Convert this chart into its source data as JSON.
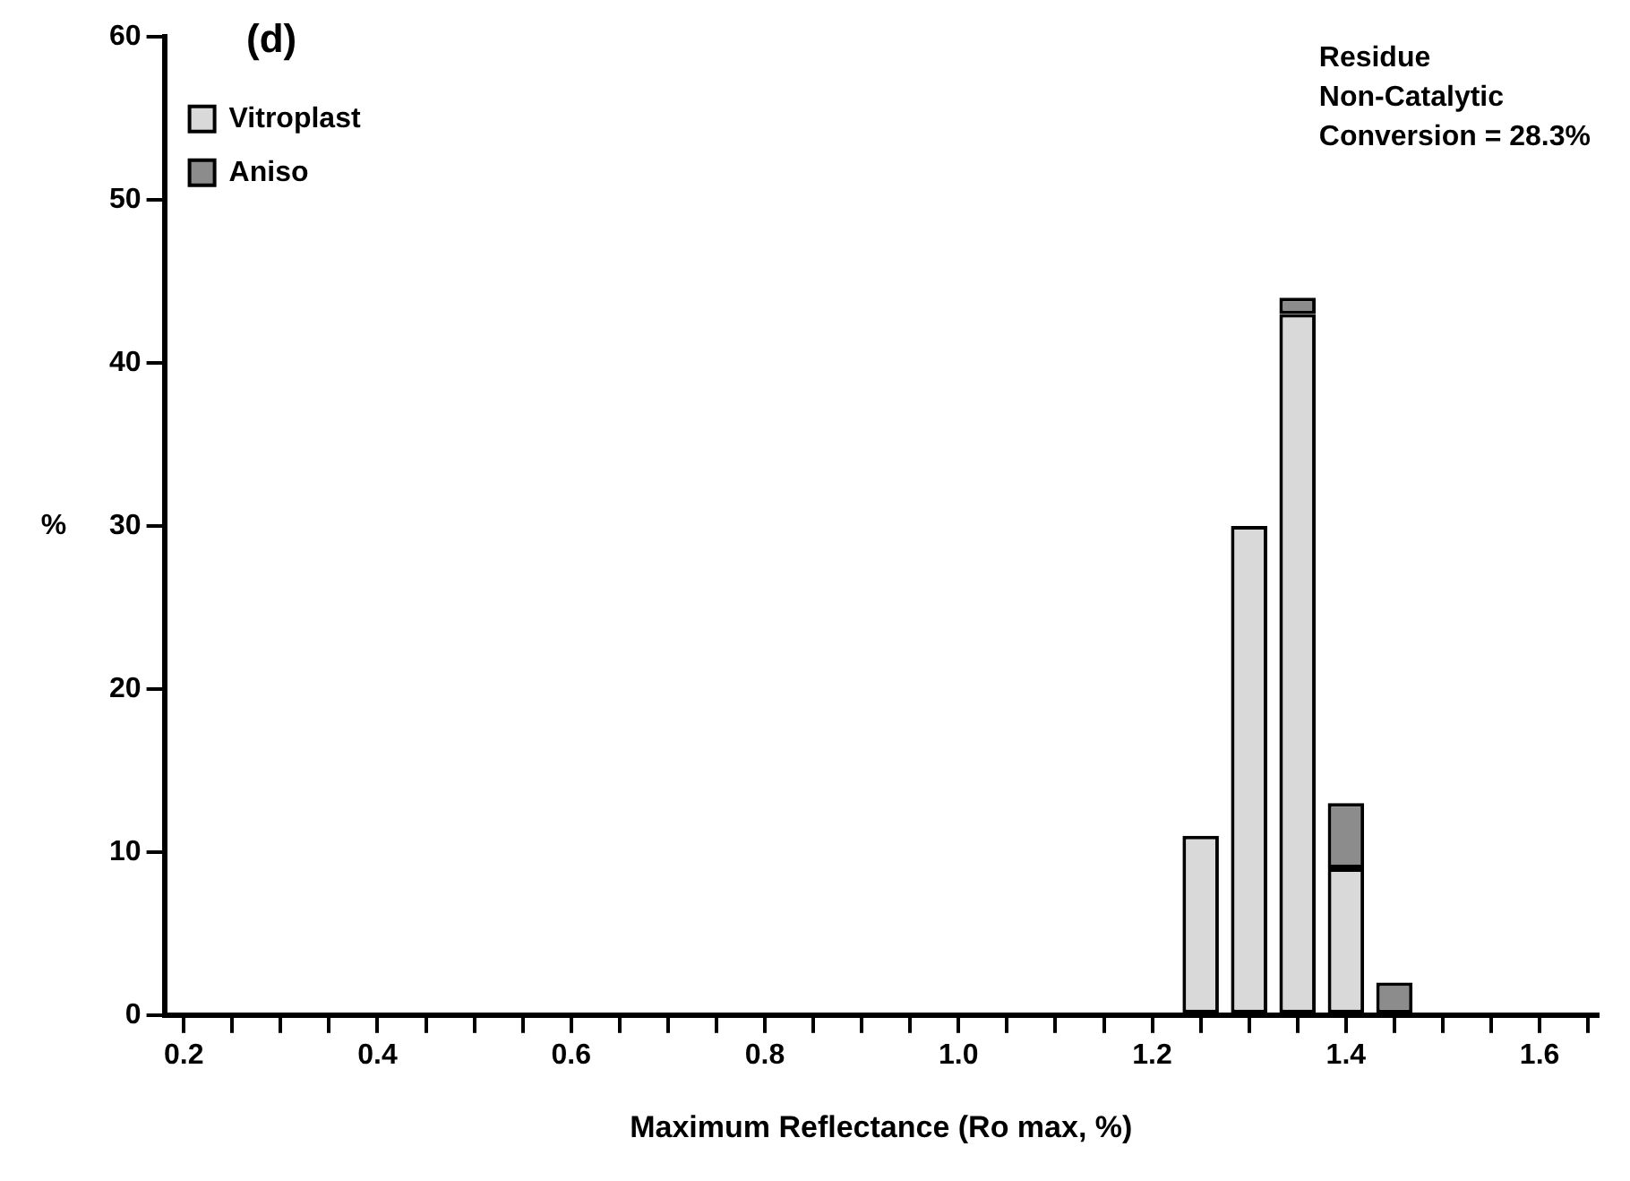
{
  "chart_data": {
    "type": "bar",
    "stacked": true,
    "xlabel": "Maximum Reflectance (Ro max, %)",
    "ylabel": "%",
    "x": [
      1.25,
      1.3,
      1.35,
      1.4,
      1.45
    ],
    "series": [
      {
        "name": "Vitroplast",
        "color": "#d9d9d9",
        "values": [
          11,
          30,
          43,
          9,
          0
        ]
      },
      {
        "name": "Aniso",
        "color": "#8c8c8c",
        "values": [
          0,
          0,
          1,
          4,
          2
        ]
      }
    ],
    "xlim": [
      0.18,
      1.66
    ],
    "ylim": [
      0,
      60
    ],
    "xticks": [
      0.2,
      {
        "value": 0.25,
        "label": null
      },
      {
        "value": 0.3,
        "label": null
      },
      {
        "value": 0.35,
        "label": null
      },
      0.4,
      {
        "value": 0.45,
        "label": null
      },
      {
        "value": 0.5,
        "label": null
      },
      {
        "value": 0.55,
        "label": null
      },
      0.6,
      {
        "value": 0.65,
        "label": null
      },
      {
        "value": 0.7,
        "label": null
      },
      {
        "value": 0.75,
        "label": null
      },
      0.8,
      {
        "value": 0.85,
        "label": null
      },
      {
        "value": 0.9,
        "label": null
      },
      {
        "value": 0.95,
        "label": null
      },
      {
        "value": 1.0,
        "label": "1.0"
      },
      {
        "value": 1.05,
        "label": null
      },
      {
        "value": 1.1,
        "label": null
      },
      {
        "value": 1.15,
        "label": null
      },
      1.2,
      {
        "value": 1.25,
        "label": null
      },
      {
        "value": 1.3,
        "label": null
      },
      {
        "value": 1.35,
        "label": null
      },
      1.4,
      {
        "value": 1.45,
        "label": null
      },
      {
        "value": 1.5,
        "label": null
      },
      {
        "value": 1.55,
        "label": null
      },
      1.6,
      {
        "value": 1.65,
        "label": null
      }
    ],
    "yticks": [
      0,
      10,
      20,
      30,
      40,
      50,
      60
    ],
    "grid": false,
    "legend": "top left",
    "annotations": [
      "(d)",
      "Residue",
      "Non-Catalytic",
      "Conversion = 28.3%"
    ]
  }
}
